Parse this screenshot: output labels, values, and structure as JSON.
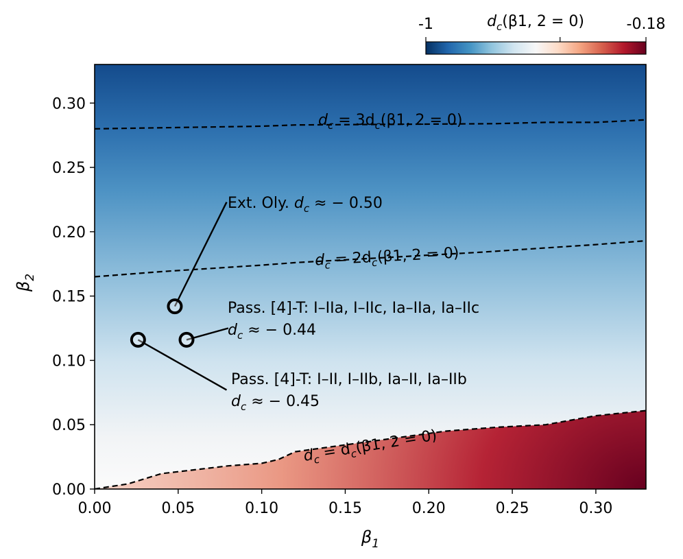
{
  "chart_data": {
    "type": "heatmap",
    "title": "",
    "xlabel": "β1",
    "ylabel": "β2",
    "xlim": [
      0.0,
      0.33
    ],
    "ylim": [
      0.0,
      0.33
    ],
    "x_ticks": [
      0.0,
      0.05,
      0.1,
      0.15,
      0.2,
      0.25,
      0.3
    ],
    "x_tick_labels": [
      "0.00",
      "0.05",
      "0.10",
      "0.15",
      "0.20",
      "0.25",
      "0.30"
    ],
    "y_ticks": [
      0.0,
      0.05,
      0.1,
      0.15,
      0.2,
      0.25,
      0.3
    ],
    "y_tick_labels": [
      "0.00",
      "0.05",
      "0.10",
      "0.15",
      "0.20",
      "0.25",
      "0.30"
    ],
    "colorbar": {
      "label_base": "d",
      "label_sub": "c",
      "label_rest": "(β1, 2 = 0)",
      "min_label": "-1",
      "max_label": "-0.18",
      "min": -1.0,
      "max": -0.18,
      "center_tick": -0.5,
      "colors": [
        "#053061",
        "#2166ac",
        "#4393c3",
        "#92c5de",
        "#d1e5f0",
        "#f7f7f7",
        "#fddbc7",
        "#f4a582",
        "#d6604d",
        "#b2182b",
        "#67001f"
      ]
    },
    "contours": [
      {
        "name": "dc = dc(β1,2 = 0)",
        "label_pre": "d",
        "label_sub": "c",
        "label_mid": " = d",
        "label_sub2": "c",
        "label_post": "(β1, 2 = 0)",
        "label_at": [
          0.165,
          0.03
        ],
        "label_angle": -9,
        "points": [
          [
            0.0,
            0.0
          ],
          [
            0.01,
            0.002
          ],
          [
            0.02,
            0.004
          ],
          [
            0.03,
            0.008
          ],
          [
            0.04,
            0.012
          ],
          [
            0.06,
            0.015
          ],
          [
            0.08,
            0.018
          ],
          [
            0.1,
            0.02
          ],
          [
            0.11,
            0.023
          ],
          [
            0.12,
            0.029
          ],
          [
            0.21,
            0.045
          ],
          [
            0.24,
            0.048
          ],
          [
            0.27,
            0.05
          ],
          [
            0.3,
            0.057
          ],
          [
            0.33,
            0.061
          ]
        ]
      },
      {
        "name": "dc = 2dc(β1,2 = 0)",
        "label_pre": "d",
        "label_sub": "c",
        "label_mid": " = 2d",
        "label_sub2": "c",
        "label_post": "(β1, 2 = 0)",
        "label_at": [
          0.175,
          0.177
        ],
        "label_angle": -3,
        "points": [
          [
            0.0,
            0.165
          ],
          [
            0.04,
            0.169
          ],
          [
            0.1,
            0.174
          ],
          [
            0.12,
            0.176
          ],
          [
            0.23,
            0.184
          ],
          [
            0.3,
            0.19
          ],
          [
            0.33,
            0.193
          ]
        ]
      },
      {
        "name": "dc = 3dc(β1,2 = 0)",
        "label_pre": "d",
        "label_sub": "c",
        "label_mid": " = 3d",
        "label_sub2": "c",
        "label_post": "(β1, 2 = 0)",
        "label_at": [
          0.177,
          0.283
        ],
        "label_angle": 0,
        "points": [
          [
            0.0,
            0.28
          ],
          [
            0.05,
            0.281
          ],
          [
            0.1,
            0.282
          ],
          [
            0.12,
            0.283
          ],
          [
            0.24,
            0.284
          ],
          [
            0.27,
            0.285
          ],
          [
            0.3,
            0.285
          ],
          [
            0.33,
            0.287
          ]
        ]
      }
    ],
    "markers": [
      {
        "name": "ext-oly",
        "x": 0.048,
        "y": 0.142,
        "line1": "Ext. Oly. ",
        "line1_math_pre": "d",
        "line1_math_sub": "c",
        "line1_math_post": " ≈ − 0.50",
        "line2": "",
        "anchor": [
          0.079,
          0.223
        ]
      },
      {
        "name": "pass-4t-i-iia",
        "x": 0.055,
        "y": 0.116,
        "line1": "Pass. [4]-T: I–IIa, I–IIc, Ia–IIa, Ia–IIc",
        "line1_math_pre": "",
        "line1_math_sub": "",
        "line1_math_post": "",
        "line2_math_pre": "d",
        "line2_math_sub": "c",
        "line2_math_post": " ≈ − 0.44",
        "anchor": [
          0.08,
          0.125
        ]
      },
      {
        "name": "pass-4t-i-ii",
        "x": 0.026,
        "y": 0.116,
        "line1": "Pass. [4]-T: I–II, I–IIb, Ia–II, Ia–IIb",
        "line1_math_pre": "",
        "line1_math_sub": "",
        "line1_math_post": "",
        "line2_math_pre": "d",
        "line2_math_sub": "c",
        "line2_math_post": " ≈ − 0.45",
        "anchor": [
          0.079,
          0.077
        ]
      }
    ]
  }
}
